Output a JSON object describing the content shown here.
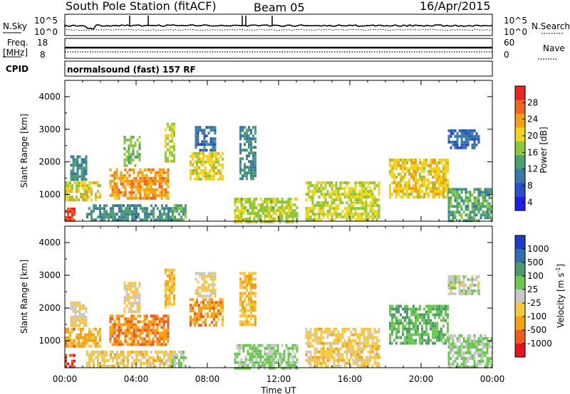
{
  "header": {
    "station": "South Pole Station (fitACF)",
    "beam": "Beam 05",
    "date": "16/Apr/2015"
  },
  "top_panels": {
    "nsky_label": "N.Sky",
    "nsky_ticks": [
      "10^5",
      "10^0"
    ],
    "nsearch_label": "N.Search",
    "nsearch_ticks": [
      "10^5",
      "10^0"
    ],
    "freq_label": "Freq.",
    "freq_unit": "[MHz]",
    "freq_ticks": [
      "18",
      "8"
    ],
    "nave_label": "Nave",
    "nave_ticks": [
      "60",
      "0"
    ],
    "cpid_label": "CPID",
    "cpid_value": "normalsound (fast) 157 RF"
  },
  "colors": {
    "power": [
      "#1e1ee6",
      "#2850c8",
      "#3a78a8",
      "#4aa070",
      "#8cc83c",
      "#f0d41e",
      "#f5a014",
      "#f0641e",
      "#e6281e"
    ],
    "velocity": [
      "#1e3cc8",
      "#2f6fb4",
      "#4a9a6c",
      "#6cc850",
      "#c8c8c8",
      "#fac83c",
      "#f5a014",
      "#f05a1e",
      "#e6141e"
    ]
  },
  "chart_data": [
    {
      "type": "heatmap",
      "title": "",
      "xlabel": "",
      "ylabel": "Slant Range [km]",
      "xlim": [
        0,
        24
      ],
      "ylim": [
        180,
        4500
      ],
      "x_ticks": [
        "00:00",
        "04:00",
        "08:00",
        "12:00",
        "16:00",
        "20:00",
        "00:00"
      ],
      "y_ticks": [
        1000,
        2000,
        3000,
        4000
      ],
      "colorbar": {
        "label": "Power [dB]",
        "ticks": [
          "28",
          "24",
          "20",
          "16",
          "12",
          "8",
          "4"
        ],
        "range": [
          0,
          30
        ]
      },
      "regions": [
        {
          "t": [
            0.0,
            0.5
          ],
          "r": [
            200,
            600
          ],
          "value": 26
        },
        {
          "t": [
            0.0,
            2.0
          ],
          "r": [
            800,
            1400
          ],
          "value": 18
        },
        {
          "t": [
            0.3,
            1.2
          ],
          "r": [
            1500,
            2200
          ],
          "value": 10
        },
        {
          "t": [
            1.2,
            6.2
          ],
          "r": [
            200,
            700
          ],
          "value": 10
        },
        {
          "t": [
            2.5,
            5.8
          ],
          "r": [
            900,
            1800
          ],
          "value": 22
        },
        {
          "t": [
            3.3,
            4.2
          ],
          "r": [
            1900,
            2800
          ],
          "value": 14
        },
        {
          "t": [
            5.6,
            6.1
          ],
          "r": [
            2000,
            3200
          ],
          "value": 16
        },
        {
          "t": [
            6.0,
            6.8
          ],
          "r": [
            200,
            700
          ],
          "value": 12
        },
        {
          "t": [
            7.0,
            8.9
          ],
          "r": [
            1500,
            2300
          ],
          "value": 18
        },
        {
          "t": [
            7.3,
            8.5
          ],
          "r": [
            2400,
            3100
          ],
          "value": 8
        },
        {
          "t": [
            9.8,
            10.7
          ],
          "r": [
            1500,
            3100
          ],
          "value": 10
        },
        {
          "t": [
            9.5,
            13.0
          ],
          "r": [
            200,
            900
          ],
          "value": 16
        },
        {
          "t": [
            13.5,
            17.7
          ],
          "r": [
            200,
            1400
          ],
          "value": 17
        },
        {
          "t": [
            18.2,
            21.5
          ],
          "r": [
            900,
            2100
          ],
          "value": 19
        },
        {
          "t": [
            21.5,
            24.0
          ],
          "r": [
            200,
            1200
          ],
          "value": 12
        },
        {
          "t": [
            21.5,
            23.2
          ],
          "r": [
            2400,
            3000
          ],
          "value": 7
        }
      ]
    },
    {
      "type": "heatmap",
      "title": "",
      "xlabel": "Time UT",
      "ylabel": "Slant Range [km]",
      "xlim": [
        0,
        24
      ],
      "ylim": [
        180,
        4500
      ],
      "x_ticks": [
        "00:00",
        "04:00",
        "08:00",
        "12:00",
        "16:00",
        "20:00",
        "00:00"
      ],
      "y_ticks": [
        1000,
        2000,
        3000,
        4000
      ],
      "colorbar": {
        "label": "Velocity [m s^-1]",
        "ticks": [
          "1000",
          "500",
          "100",
          "25",
          "-25",
          "-100",
          "-500",
          "-1000"
        ],
        "range": [
          -1000,
          1000
        ]
      },
      "regions": [
        {
          "t": [
            0.0,
            0.5
          ],
          "r": [
            200,
            600
          ],
          "value": -700
        },
        {
          "t": [
            0.0,
            2.0
          ],
          "r": [
            800,
            1400
          ],
          "value": -400
        },
        {
          "t": [
            0.3,
            1.2
          ],
          "r": [
            1500,
            2200
          ],
          "value": -150
        },
        {
          "t": [
            1.2,
            6.2
          ],
          "r": [
            200,
            700
          ],
          "value": -200
        },
        {
          "t": [
            2.5,
            5.8
          ],
          "r": [
            900,
            1800
          ],
          "value": -500
        },
        {
          "t": [
            3.3,
            4.2
          ],
          "r": [
            1900,
            2800
          ],
          "value": -120
        },
        {
          "t": [
            5.6,
            6.1
          ],
          "r": [
            2000,
            3200
          ],
          "value": -300
        },
        {
          "t": [
            6.0,
            6.8
          ],
          "r": [
            200,
            700
          ],
          "value": 120
        },
        {
          "t": [
            7.0,
            8.9
          ],
          "r": [
            1500,
            2300
          ],
          "value": -450
        },
        {
          "t": [
            7.3,
            8.5
          ],
          "r": [
            2400,
            3100
          ],
          "value": -100
        },
        {
          "t": [
            9.8,
            10.7
          ],
          "r": [
            1500,
            3100
          ],
          "value": -300
        },
        {
          "t": [
            9.5,
            13.0
          ],
          "r": [
            200,
            900
          ],
          "value": 150
        },
        {
          "t": [
            13.5,
            17.7
          ],
          "r": [
            200,
            1400
          ],
          "value": -200
        },
        {
          "t": [
            18.2,
            21.5
          ],
          "r": [
            900,
            2100
          ],
          "value": 300
        },
        {
          "t": [
            21.5,
            24.0
          ],
          "r": [
            200,
            1200
          ],
          "value": 120
        },
        {
          "t": [
            21.5,
            23.2
          ],
          "r": [
            2400,
            3000
          ],
          "value": 10
        }
      ]
    }
  ]
}
